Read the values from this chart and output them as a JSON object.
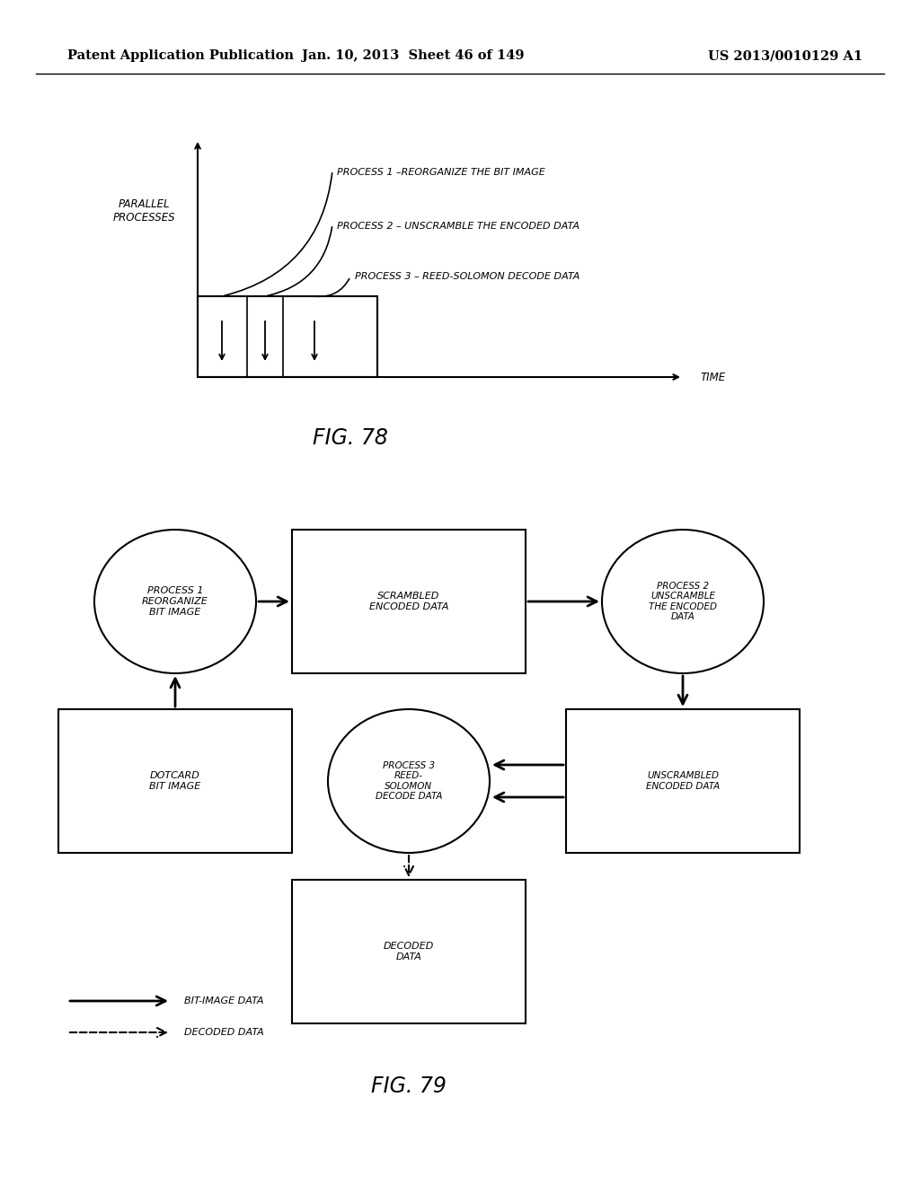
{
  "header_left": "Patent Application Publication",
  "header_mid": "Jan. 10, 2013  Sheet 46 of 149",
  "header_right": "US 2013/0010129 A1",
  "fig78_caption": "FIG. 78",
  "fig79_caption": "FIG. 79",
  "bg_color": "#ffffff",
  "text_color": "#000000",
  "fig78": {
    "y_label": "PARALLEL\nPROCESSES",
    "x_label": "TIME",
    "process_labels": [
      "PROCESS 1 –REORGANIZE THE BIT IMAGE",
      "PROCESS 2 – UNSCRAMBLE THE ENCODED DATA",
      "PROCESS 3 – REED-SOLOMON DECODE DATA"
    ]
  },
  "fig79": {
    "legend_solid": "BIT-IMAGE DATA",
    "legend_dashed": "DECODED DATA"
  }
}
